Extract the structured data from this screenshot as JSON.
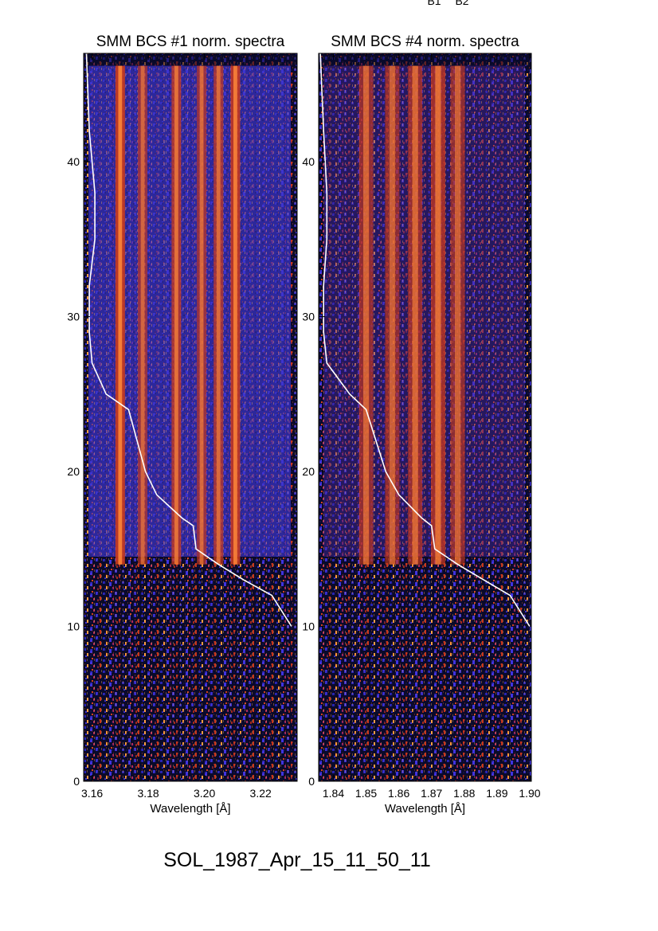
{
  "header_marks": [
    "B1",
    "B2"
  ],
  "caption": "SOL_1987_Apr_15_11_50_11",
  "colors": {
    "background_dark": "#0a0a22",
    "blue": "#3a32d8",
    "red": "#d83a1a",
    "orange": "#ff9a3a",
    "curve": "#ffffff"
  },
  "chart_data": [
    {
      "type": "heatmap",
      "title": "SMM BCS #1 norm. spectra",
      "xlabel": "Wavelength [Å]",
      "ylabel": "",
      "xlim": [
        3.157,
        3.233
      ],
      "ylim": [
        0,
        47
      ],
      "x_ticks": [
        "3.16",
        "3.18",
        "3.20",
        "3.22"
      ],
      "x_tick_values": [
        3.16,
        3.18,
        3.2,
        3.22
      ],
      "y_ticks": [
        "0",
        "10",
        "20",
        "30",
        "40"
      ],
      "y_tick_values": [
        0,
        10,
        20,
        30,
        40
      ],
      "colormap": "dark-blue-red-orange",
      "emission_lines": [
        {
          "x": 3.17,
          "strength": 1.0
        },
        {
          "x": 3.178,
          "strength": 0.55
        },
        {
          "x": 3.19,
          "strength": 0.75
        },
        {
          "x": 3.199,
          "strength": 0.6
        },
        {
          "x": 3.205,
          "strength": 0.65
        },
        {
          "x": 3.211,
          "strength": 0.95
        }
      ],
      "overlay_curve": {
        "color": "#ffffff",
        "points": [
          [
            3.231,
            10
          ],
          [
            3.224,
            12
          ],
          [
            3.214,
            13
          ],
          [
            3.205,
            14
          ],
          [
            3.197,
            15
          ],
          [
            3.196,
            16.5
          ],
          [
            3.192,
            17
          ],
          [
            3.183,
            18.5
          ],
          [
            3.179,
            20
          ],
          [
            3.176,
            22
          ],
          [
            3.173,
            24
          ],
          [
            3.165,
            25
          ],
          [
            3.16,
            27
          ],
          [
            3.159,
            29
          ],
          [
            3.159,
            32
          ],
          [
            3.161,
            35
          ],
          [
            3.161,
            38
          ],
          [
            3.159,
            42
          ],
          [
            3.158,
            47
          ]
        ]
      }
    },
    {
      "type": "heatmap",
      "title": "SMM BCS #4 norm. spectra",
      "xlabel": "Wavelength [Å]",
      "ylabel": "",
      "xlim": [
        1.8355,
        1.9005
      ],
      "ylim": [
        0,
        47
      ],
      "x_ticks": [
        "1.84",
        "1.85",
        "1.86",
        "1.87",
        "1.88",
        "1.89",
        "1.90"
      ],
      "x_tick_values": [
        1.84,
        1.85,
        1.86,
        1.87,
        1.88,
        1.89,
        1.9
      ],
      "y_ticks": [
        "0",
        "10",
        "20",
        "30",
        "40"
      ],
      "y_tick_values": [
        0,
        10,
        20,
        30,
        40
      ],
      "colormap": "dark-blue-red-orange",
      "emission_lines": [
        {
          "x": 1.85,
          "strength": 0.55
        },
        {
          "x": 1.858,
          "strength": 0.5
        },
        {
          "x": 1.865,
          "strength": 0.6
        },
        {
          "x": 1.872,
          "strength": 0.7
        },
        {
          "x": 1.878,
          "strength": 0.5
        }
      ],
      "overlay_curve": {
        "color": "#ffffff",
        "points": [
          [
            1.9,
            10
          ],
          [
            1.894,
            12
          ],
          [
            1.886,
            13
          ],
          [
            1.878,
            14
          ],
          [
            1.871,
            15
          ],
          [
            1.87,
            16.5
          ],
          [
            1.867,
            17
          ],
          [
            1.86,
            18.5
          ],
          [
            1.856,
            20
          ],
          [
            1.853,
            22
          ],
          [
            1.85,
            24
          ],
          [
            1.845,
            25
          ],
          [
            1.838,
            27
          ],
          [
            1.837,
            29
          ],
          [
            1.837,
            32
          ],
          [
            1.838,
            35
          ],
          [
            1.838,
            38
          ],
          [
            1.837,
            42
          ],
          [
            1.836,
            47
          ]
        ]
      }
    }
  ]
}
